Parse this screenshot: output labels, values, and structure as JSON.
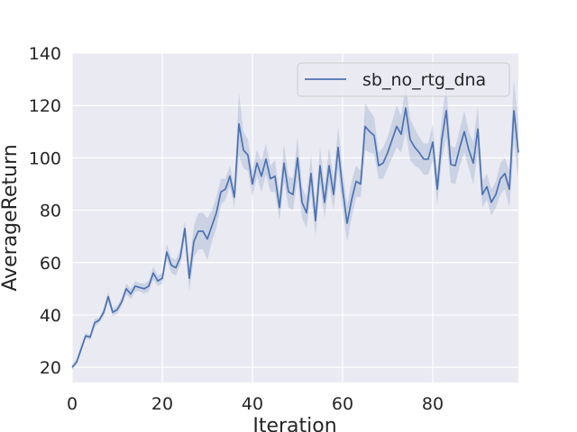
{
  "chart_data": {
    "type": "line",
    "x_label": "Iteration",
    "y_label": "AverageReturn",
    "xlim": [
      0,
      99
    ],
    "ylim": [
      14.2,
      140
    ],
    "xticks": [
      0,
      20,
      40,
      60,
      80
    ],
    "yticks": [
      20,
      40,
      60,
      80,
      100,
      120,
      140
    ],
    "grid": true,
    "legend": "upper right",
    "x": [
      0,
      1,
      2,
      3,
      4,
      5,
      6,
      7,
      8,
      9,
      10,
      11,
      12,
      13,
      14,
      15,
      16,
      17,
      18,
      19,
      20,
      21,
      22,
      23,
      24,
      25,
      26,
      27,
      28,
      29,
      30,
      31,
      32,
      33,
      34,
      35,
      36,
      37,
      38,
      39,
      40,
      41,
      42,
      43,
      44,
      45,
      46,
      47,
      48,
      49,
      50,
      51,
      52,
      53,
      54,
      55,
      56,
      57,
      58,
      59,
      60,
      61,
      62,
      63,
      64,
      65,
      66,
      67,
      68,
      69,
      70,
      71,
      72,
      73,
      74,
      75,
      76,
      77,
      78,
      79,
      80,
      81,
      82,
      83,
      84,
      85,
      86,
      87,
      88,
      89,
      90,
      91,
      92,
      93,
      94,
      95,
      96,
      97,
      98,
      99
    ],
    "series": [
      {
        "name": "sb_no_rtg_dna",
        "color": "#4c72b0",
        "values": [
          20,
          22,
          27,
          32,
          31.5,
          37,
          38,
          41,
          47,
          41,
          42,
          45,
          50,
          48,
          51,
          50.5,
          50,
          51,
          56,
          53,
          54,
          64,
          59,
          58,
          62,
          73,
          54,
          68,
          72,
          72,
          69,
          74,
          79,
          87,
          88,
          93,
          85,
          113,
          103,
          101,
          90,
          98,
          93,
          99.5,
          92,
          93,
          81,
          98,
          87,
          86,
          100,
          83,
          79,
          94,
          76,
          97,
          83,
          97,
          86,
          104,
          88,
          75,
          84,
          91,
          90,
          112,
          110,
          108.5,
          97,
          98,
          102,
          107,
          112,
          109,
          119,
          107,
          104,
          102,
          99.5,
          99.5,
          106,
          88,
          107,
          118,
          97.5,
          97,
          104,
          110,
          103,
          98,
          111,
          86,
          89,
          83,
          86,
          92,
          94,
          88,
          118,
          102
        ],
        "error": [
          1,
          1,
          1.5,
          1,
          1,
          1.5,
          1,
          1.5,
          2,
          1.5,
          1.5,
          1.5,
          2,
          2,
          2,
          1.5,
          2,
          2,
          2.5,
          2,
          2,
          3,
          3,
          3,
          3,
          3,
          5,
          6,
          7,
          7,
          8,
          6,
          6,
          5,
          4,
          4,
          4,
          12,
          7,
          6,
          5,
          5,
          6,
          6,
          5,
          6,
          5,
          7,
          6,
          6,
          8,
          6,
          6,
          7,
          6,
          7,
          6,
          7,
          6,
          8,
          8,
          7,
          7,
          6,
          5,
          9,
          8,
          7,
          5,
          6,
          6,
          7,
          8,
          7,
          9,
          8,
          7,
          6,
          6,
          6,
          7,
          6,
          8,
          10,
          7,
          7,
          7,
          8,
          7,
          8,
          9,
          5,
          5,
          5,
          5,
          6,
          6,
          7,
          12,
          10
        ]
      }
    ]
  }
}
